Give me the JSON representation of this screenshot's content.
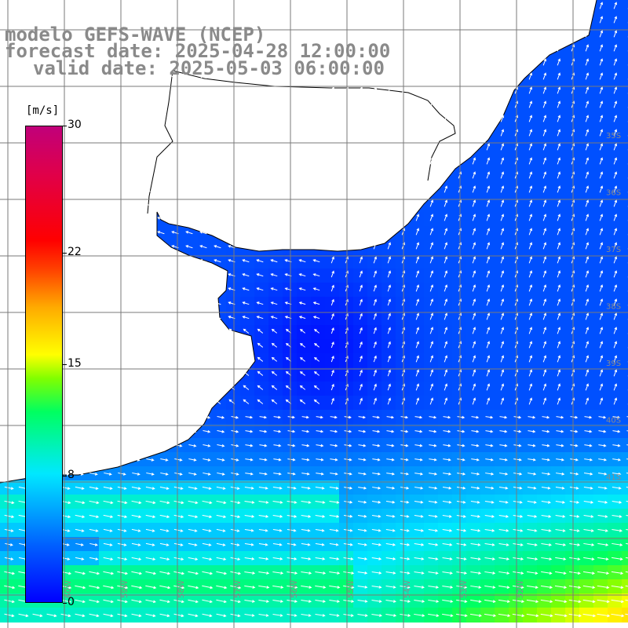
{
  "title": {
    "line1": "modelo GEFS-WAVE (NCEP)",
    "line2": "forecast date: 2025-04-28 12:00:00",
    "line3": "valid date: 2025-05-03 06:00:00"
  },
  "colorbar": {
    "unit": "[m/s]",
    "ticks": [
      "30",
      "22",
      "15",
      "8",
      "0"
    ],
    "tick_values": [
      30,
      22,
      15,
      8,
      0
    ],
    "range": [
      0,
      30
    ],
    "colors": [
      "#0000ff",
      "#0060ff",
      "#00aaff",
      "#00e8ff",
      "#00ff60",
      "#80ff00",
      "#ffff00",
      "#ffaa00",
      "#ff4000",
      "#ff0000",
      "#e0004a",
      "#c0007a"
    ]
  },
  "map": {
    "ocean_color_low": "#0a3cf0",
    "land_color": "#ffffff",
    "coastline_color": "#000000",
    "grid_color": "#7a7a7a",
    "arrow_color": "#ffffff",
    "lat_labels": [
      "35S",
      "36S",
      "37S",
      "38S",
      "39S",
      "40S",
      "41S"
    ],
    "lat_label_values": [
      35,
      36,
      37,
      38,
      39,
      40,
      41
    ],
    "lon_labels": [
      "60W",
      "59W",
      "58W",
      "57W",
      "56W",
      "55W",
      "54W",
      "53W",
      "52W"
    ],
    "lon_label_values": [
      60,
      59,
      58,
      57,
      56,
      55,
      54,
      53,
      52
    ]
  }
}
